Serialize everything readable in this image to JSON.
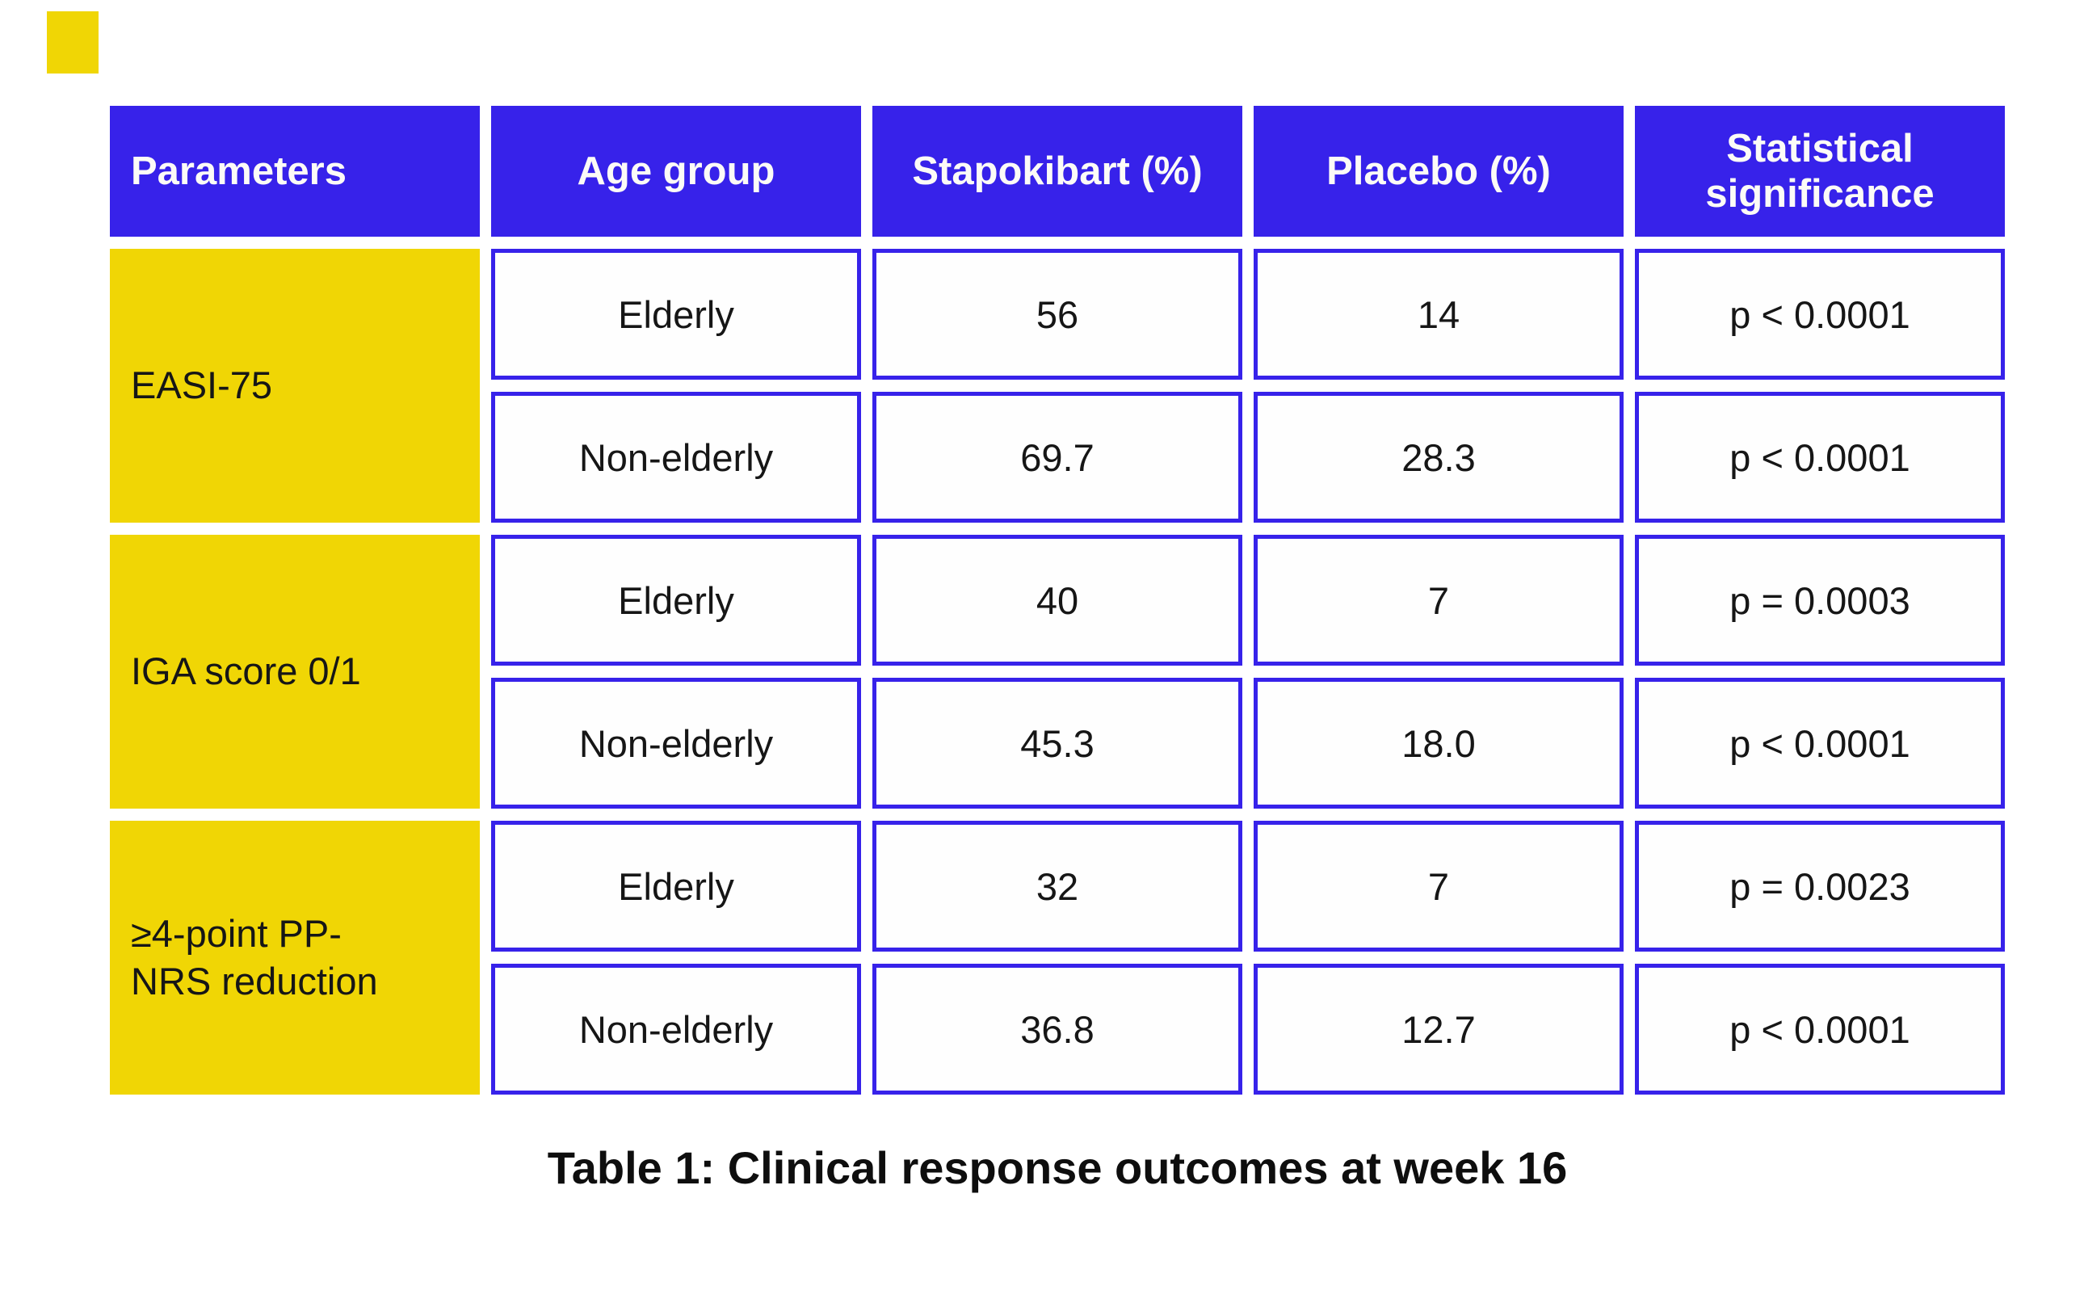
{
  "colors": {
    "header_bg": "#3722EA",
    "cell_border": "#3722EA",
    "parameter_bg": "#F0D605",
    "accent_yellow": "#F0D605",
    "header_text": "#FCFBF7",
    "body_text": "#161616"
  },
  "table": {
    "headers": [
      "Parameters",
      "Age group",
      "Stapokibart (%)",
      "Placebo (%)",
      "Statistical significance"
    ],
    "groups": [
      {
        "parameter": "EASI-75",
        "rows": [
          {
            "age_group": "Elderly",
            "stapokibart": "56",
            "placebo": "14",
            "significance": "p < 0.0001"
          },
          {
            "age_group": "Non-elderly",
            "stapokibart": "69.7",
            "placebo": "28.3",
            "significance": "p < 0.0001"
          }
        ]
      },
      {
        "parameter": "IGA score 0/1",
        "rows": [
          {
            "age_group": "Elderly",
            "stapokibart": "40",
            "placebo": "7",
            "significance": "p = 0.0003"
          },
          {
            "age_group": "Non-elderly",
            "stapokibart": "45.3",
            "placebo": "18.0",
            "significance": "p < 0.0001"
          }
        ]
      },
      {
        "parameter": "≥4-point PP-NRS reduction",
        "rows": [
          {
            "age_group": "Elderly",
            "stapokibart": "32",
            "placebo": "7",
            "significance": "p = 0.0023"
          },
          {
            "age_group": "Non-elderly",
            "stapokibart": "36.8",
            "placebo": "12.7",
            "significance": "p < 0.0001"
          }
        ]
      }
    ],
    "caption": "Table 1: Clinical response outcomes at week 16"
  },
  "chart_data": {
    "type": "table",
    "title": "Table 1: Clinical response outcomes at week 16",
    "columns": [
      "Parameters",
      "Age group",
      "Stapokibart (%)",
      "Placebo (%)",
      "Statistical significance"
    ],
    "rows": [
      [
        "EASI-75",
        "Elderly",
        56,
        14,
        "p < 0.0001"
      ],
      [
        "EASI-75",
        "Non-elderly",
        69.7,
        28.3,
        "p < 0.0001"
      ],
      [
        "IGA score 0/1",
        "Elderly",
        40,
        7,
        "p = 0.0003"
      ],
      [
        "IGA score 0/1",
        "Non-elderly",
        45.3,
        18.0,
        "p < 0.0001"
      ],
      [
        "≥4-point PP-NRS reduction",
        "Elderly",
        32,
        7,
        "p = 0.0023"
      ],
      [
        "≥4-point PP-NRS reduction",
        "Non-elderly",
        36.8,
        12.7,
        "p < 0.0001"
      ]
    ]
  }
}
